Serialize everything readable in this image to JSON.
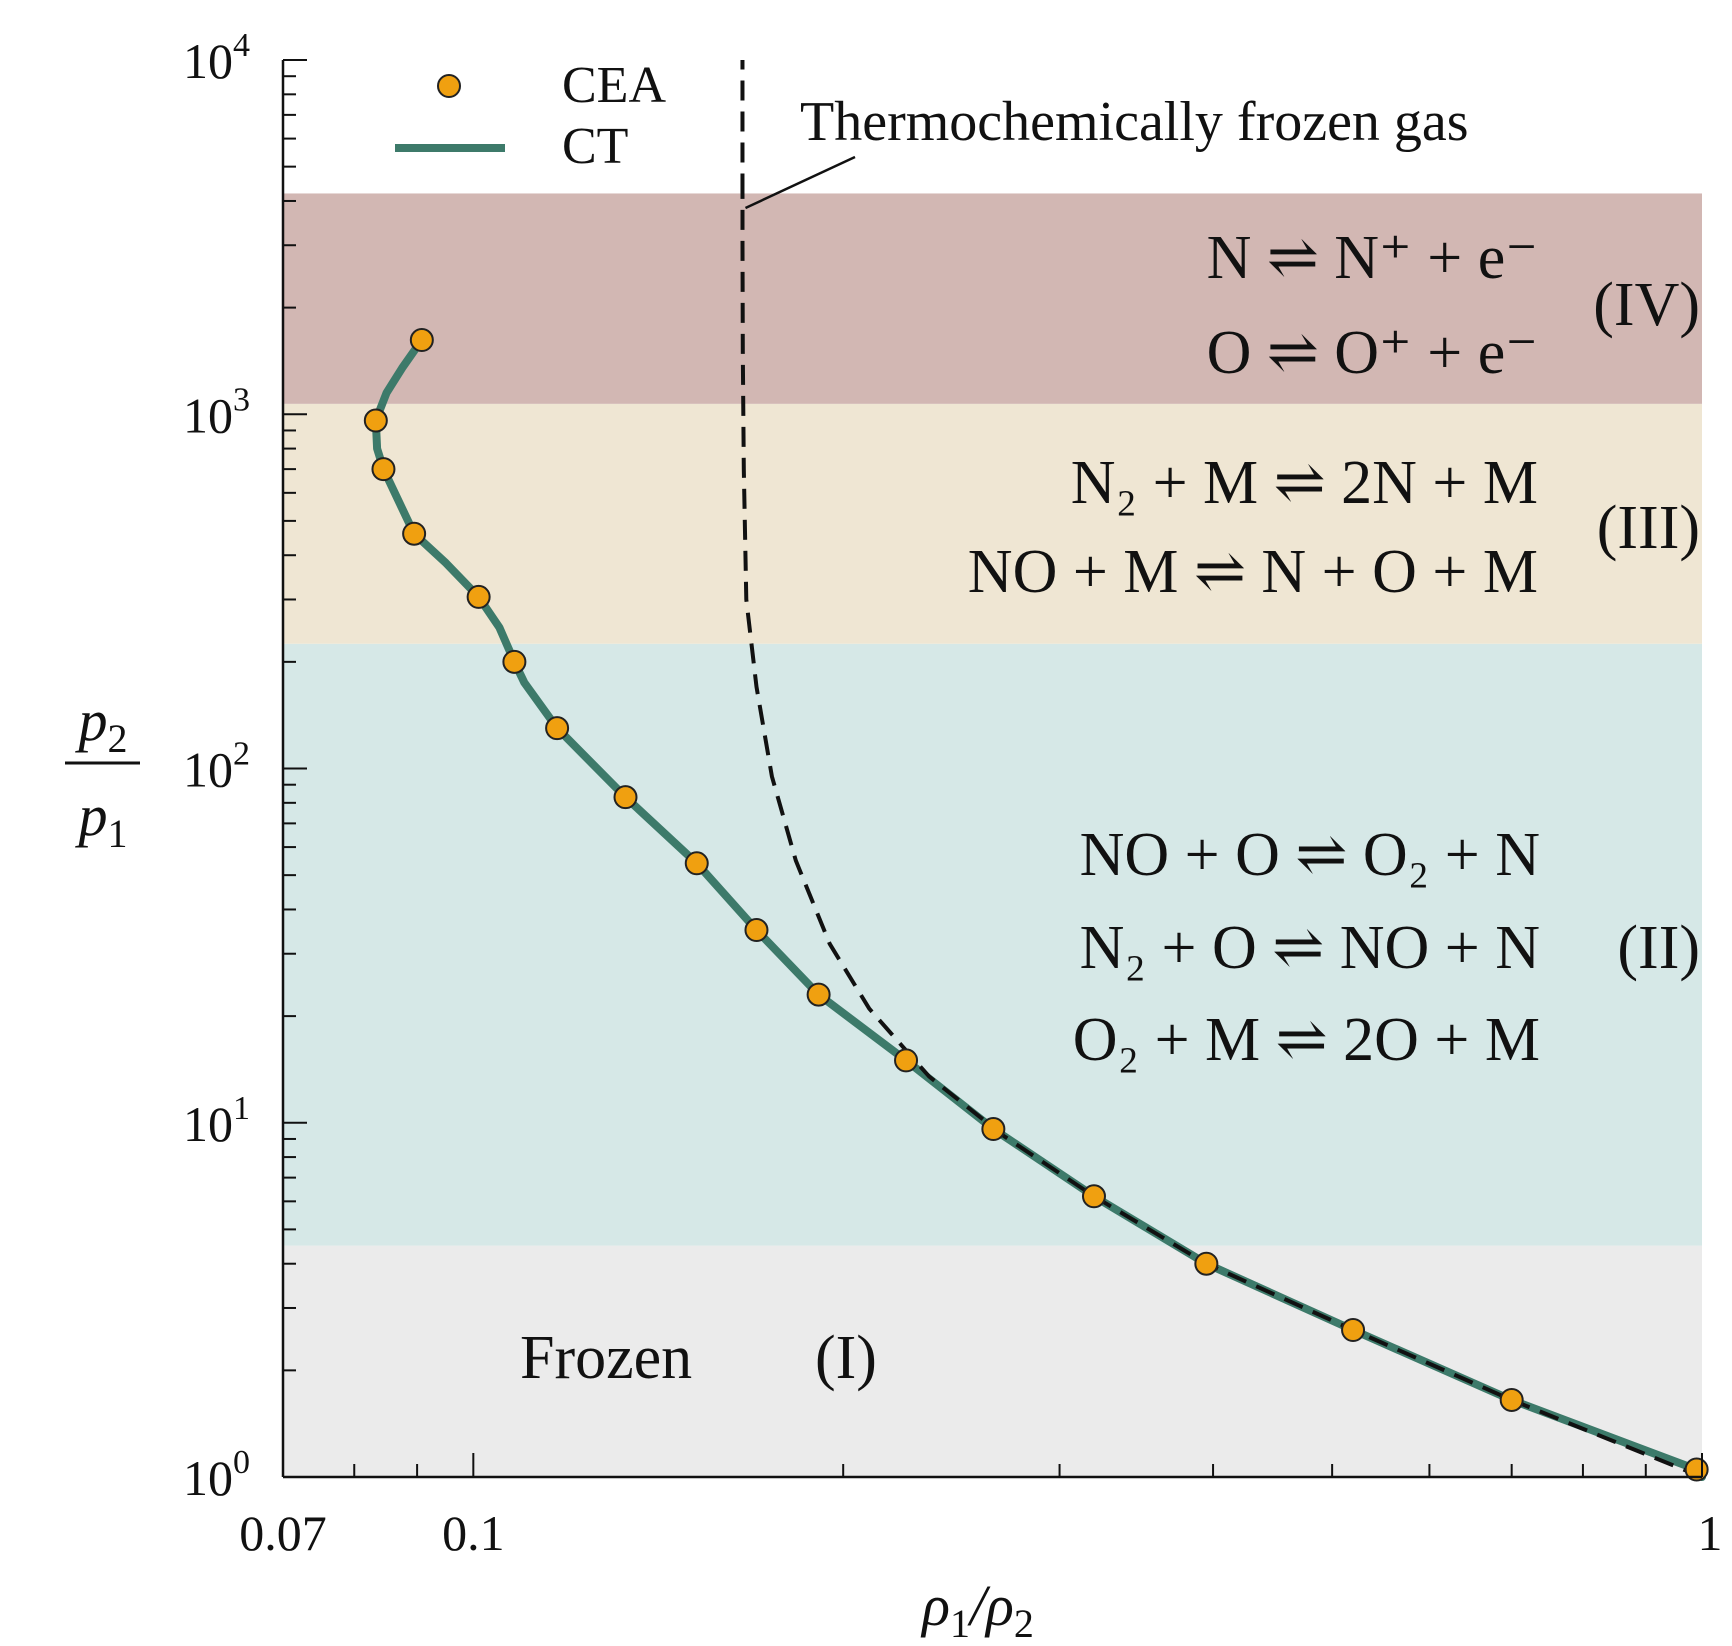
{
  "chart_data": {
    "type": "line",
    "xlabel": "ρ1/ρ2",
    "ylabel": "p2/p1",
    "xscale": "log",
    "yscale": "log",
    "xlim": [
      0.07,
      1
    ],
    "ylim": [
      1,
      10000
    ],
    "grid": false,
    "legend_placement": "top-left",
    "x_tick_labels": [
      {
        "value": 0.07,
        "label": "0.07"
      },
      {
        "value": 0.1,
        "label": "0.1"
      },
      {
        "value": 1,
        "label": "1"
      }
    ],
    "y_tick_labels": [
      {
        "value": 1,
        "base": "10",
        "exp": "0"
      },
      {
        "value": 10,
        "base": "10",
        "exp": "1"
      },
      {
        "value": 100,
        "base": "10",
        "exp": "2"
      },
      {
        "value": 1000,
        "base": "10",
        "exp": "3"
      },
      {
        "value": 10000,
        "base": "10",
        "exp": "4"
      }
    ],
    "regions": [
      {
        "label": "(I)",
        "y_range": [
          1,
          4.5
        ],
        "color": "#ebebeb",
        "lines": [
          "Frozen"
        ]
      },
      {
        "label": "(II)",
        "y_range": [
          4.5,
          225
        ],
        "color": "#d6e8e7",
        "lines": [
          "NO + O ⇌ O₂ + N",
          "N₂ + O ⇌ NO + N",
          "O₂ + M ⇌ 2O + M"
        ]
      },
      {
        "label": "(III)",
        "y_range": [
          225,
          1070
        ],
        "color": "#efe6d3",
        "lines": [
          "N₂ + M ⇌ 2N + M",
          "NO + M ⇌ N + O + M"
        ]
      },
      {
        "label": "(IV)",
        "y_range": [
          1070,
          4200
        ],
        "color": "#d2b7b3",
        "lines": [
          "N ⇌ N⁺ + e⁻",
          "O ⇌ O⁺ + e⁻"
        ]
      }
    ],
    "series": [
      {
        "name": "CEA",
        "kind": "scatter",
        "color": "#f0a010",
        "x": [
          0.99,
          0.7,
          0.52,
          0.395,
          0.32,
          0.265,
          0.225,
          0.191,
          0.17,
          0.152,
          0.133,
          0.117,
          0.108,
          0.101,
          0.0895,
          0.0845,
          0.0833,
          0.0908
        ],
        "y": [
          1.05,
          1.65,
          2.6,
          4.0,
          6.2,
          9.6,
          15,
          23,
          35,
          54,
          83,
          130,
          200,
          305,
          460,
          700,
          960,
          1620
        ]
      },
      {
        "name": "CT",
        "kind": "line",
        "color": "#3d7a6a",
        "x": [
          1.0,
          0.99,
          0.7,
          0.52,
          0.395,
          0.32,
          0.265,
          0.225,
          0.191,
          0.17,
          0.152,
          0.133,
          0.117,
          0.11,
          0.108,
          0.105,
          0.101,
          0.095,
          0.0895,
          0.0845,
          0.0835,
          0.0833,
          0.085,
          0.0875,
          0.0908
        ],
        "y": [
          1.0,
          1.05,
          1.65,
          2.6,
          4.0,
          6.2,
          9.6,
          15,
          23,
          35,
          54,
          83,
          130,
          175,
          200,
          250,
          305,
          380,
          460,
          700,
          800,
          960,
          1150,
          1350,
          1620
        ]
      },
      {
        "kind": "dashed-line",
        "color": "#111111",
        "x": [
          1.0,
          0.7,
          0.52,
          0.395,
          0.32,
          0.27,
          0.235,
          0.21,
          0.195,
          0.183,
          0.175,
          0.17,
          0.1668,
          0.166,
          0.1657,
          0.1656,
          0.1656
        ],
        "y": [
          1.0,
          1.65,
          2.6,
          4.0,
          6.2,
          9.2,
          13.5,
          21,
          32,
          55,
          95,
          170,
          300,
          700,
          1500,
          3000,
          4200
        ]
      }
    ],
    "legend": [
      {
        "label": "CEA",
        "marker": "circle"
      },
      {
        "label": "CT",
        "marker": "line"
      }
    ],
    "annotations": [
      {
        "text": "Thermochemically frozen gas",
        "points_to": "dashed-line"
      }
    ]
  }
}
